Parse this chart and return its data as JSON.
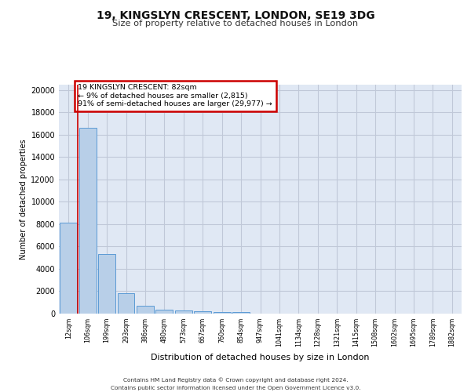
{
  "title_line1": "19, KINGSLYN CRESCENT, LONDON, SE19 3DG",
  "title_line2": "Size of property relative to detached houses in London",
  "xlabel": "Distribution of detached houses by size in London",
  "ylabel": "Number of detached properties",
  "categories": [
    "12sqm",
    "106sqm",
    "199sqm",
    "293sqm",
    "386sqm",
    "480sqm",
    "573sqm",
    "667sqm",
    "760sqm",
    "854sqm",
    "947sqm",
    "1041sqm",
    "1134sqm",
    "1228sqm",
    "1321sqm",
    "1415sqm",
    "1508sqm",
    "1602sqm",
    "1695sqm",
    "1789sqm",
    "1882sqm"
  ],
  "bar_heights": [
    8100,
    16600,
    5300,
    1800,
    700,
    350,
    270,
    210,
    170,
    130,
    0,
    0,
    0,
    0,
    0,
    0,
    0,
    0,
    0,
    0,
    0
  ],
  "bar_color": "#b8cfe8",
  "bar_edge_color": "#5b9bd5",
  "property_line_x": 0.5,
  "annotation_text": "19 KINGSLYN CRESCENT: 82sqm\n← 9% of detached houses are smaller (2,815)\n91% of semi-detached houses are larger (29,977) →",
  "red_color": "#cc0000",
  "ylim": [
    0,
    20500
  ],
  "yticks": [
    0,
    2000,
    4000,
    6000,
    8000,
    10000,
    12000,
    14000,
    16000,
    18000,
    20000
  ],
  "grid_color": "#c0c8d8",
  "background_color": "#e0e8f4",
  "footer_line1": "Contains HM Land Registry data © Crown copyright and database right 2024.",
  "footer_line2": "Contains public sector information licensed under the Open Government Licence v3.0."
}
